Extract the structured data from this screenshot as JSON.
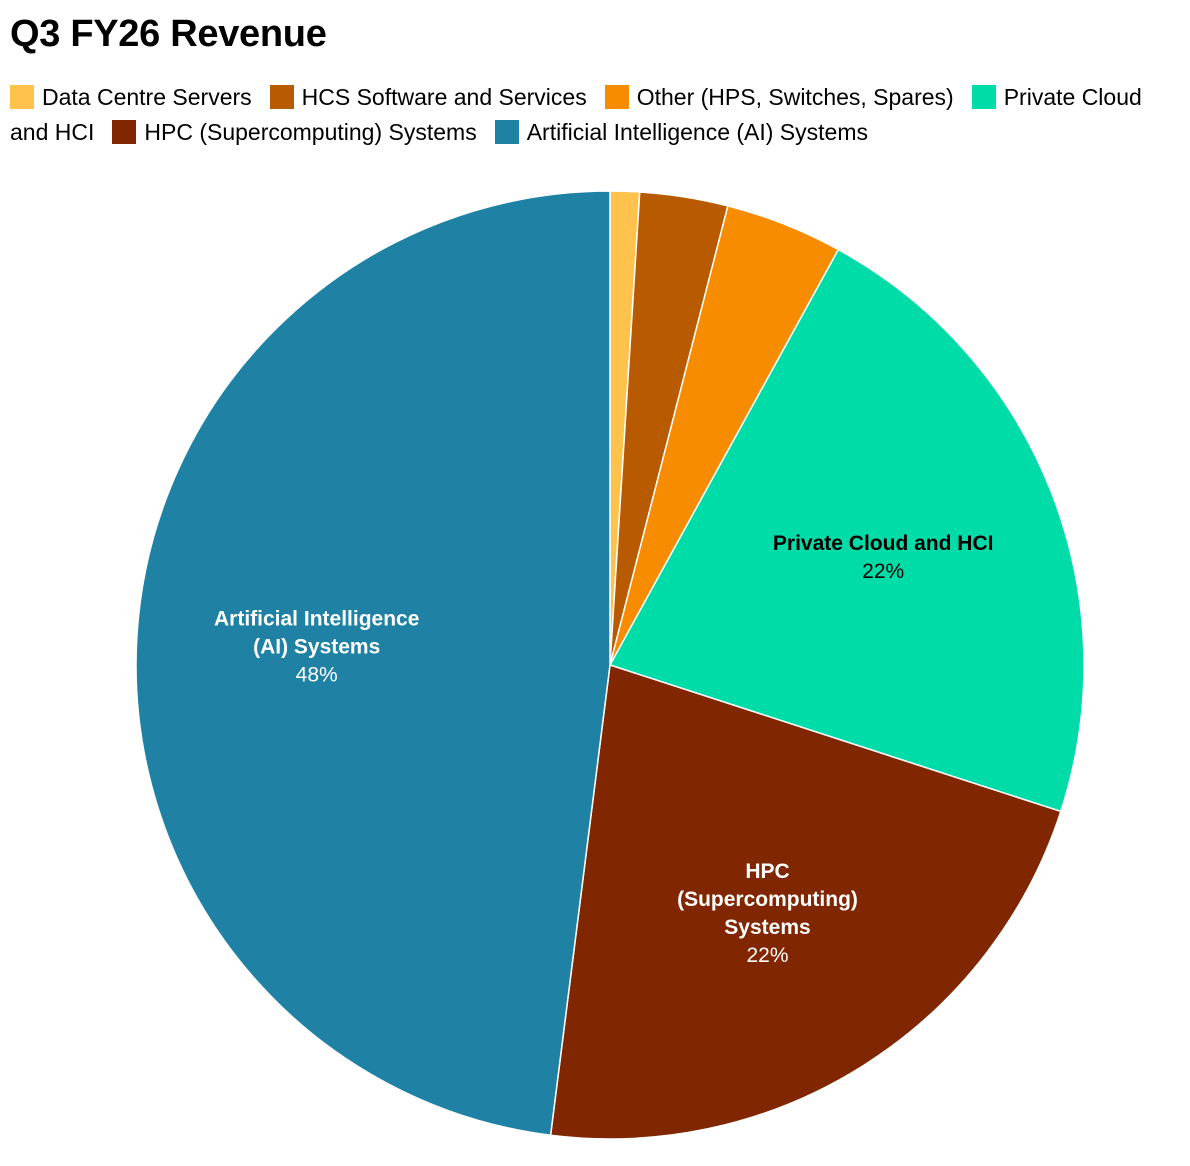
{
  "chart_data": {
    "type": "pie",
    "title": "Q3 FY26 Revenue",
    "legend_position": "top",
    "categories": [
      "Data Centre Servers",
      "HCS Software and Services",
      "Other (HPS, Switches, Spares)",
      "Private Cloud and HCI",
      "HPC (Supercomputing) Systems",
      "Artificial Intelligence (AI) Systems"
    ],
    "values": [
      1,
      3,
      4,
      22,
      22,
      48
    ],
    "colors": [
      "#ffc34d",
      "#b85a00",
      "#f78c00",
      "#00dca8",
      "#802600",
      "#1f81a3"
    ],
    "data_labels": [
      {
        "index": 3,
        "lines": [
          "Private Cloud and HCI"
        ],
        "pct": "22%",
        "color": "#000000"
      },
      {
        "index": 4,
        "lines": [
          "HPC",
          "(Supercomputing)",
          "Systems"
        ],
        "pct": "22%",
        "color": "#ffffff"
      },
      {
        "index": 5,
        "lines": [
          "Artificial Intelligence",
          "(AI) Systems"
        ],
        "pct": "48%",
        "color": "#ffffff"
      }
    ]
  }
}
